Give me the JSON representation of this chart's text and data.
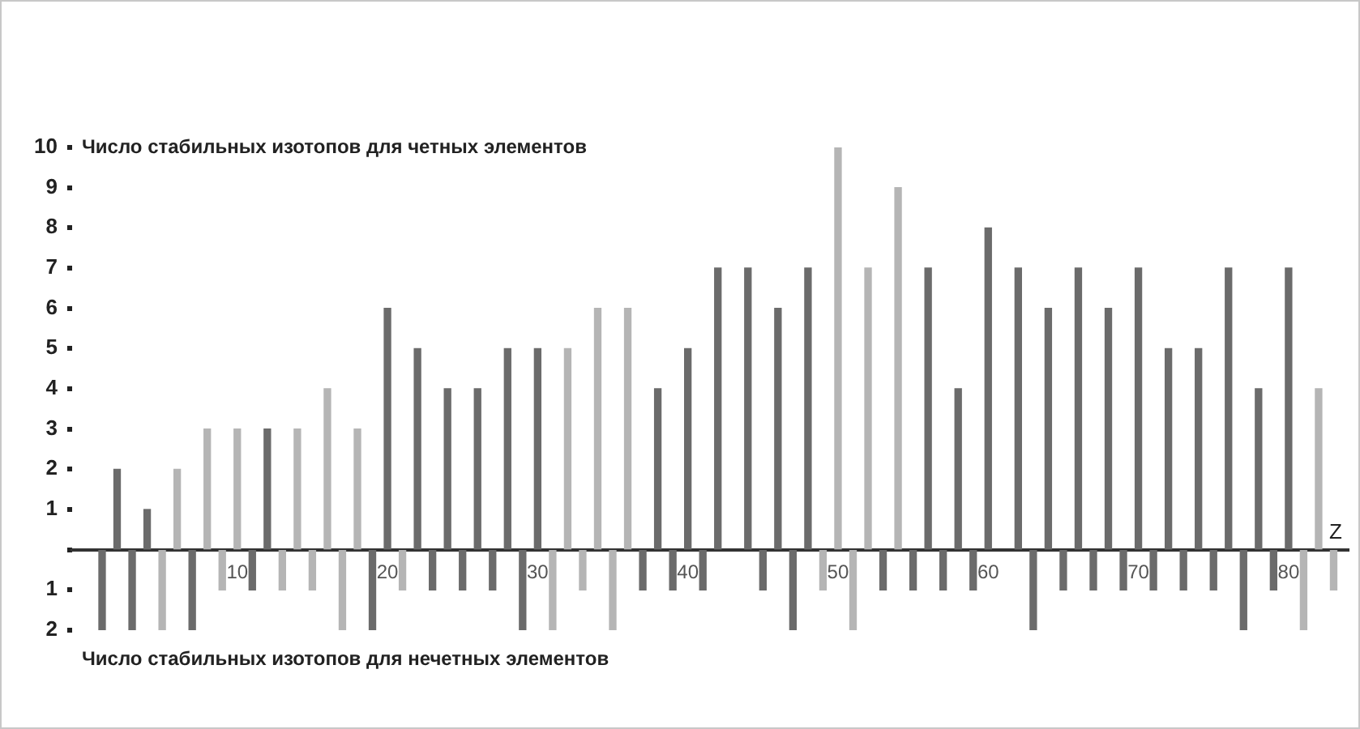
{
  "chart_data": {
    "type": "bar",
    "xlabel": "Z",
    "annotations": [
      "Число стабильных изотопов для четных элементов",
      "Число стабильных изотопов для нечетных элементов"
    ],
    "series": [
      {
        "x": [
          1,
          2,
          3,
          4,
          5,
          6,
          7,
          8,
          9,
          10,
          11,
          12,
          13,
          14,
          15,
          16,
          17,
          18,
          19,
          20,
          21,
          22,
          23,
          24,
          25,
          26,
          27,
          28,
          29,
          30,
          31,
          32,
          33,
          34,
          35,
          36,
          37,
          38,
          39,
          40,
          41,
          42,
          43,
          44,
          45,
          46,
          47,
          48,
          49,
          50,
          51,
          52,
          53,
          54,
          55,
          56,
          57,
          58,
          59,
          60,
          61,
          62,
          63,
          64,
          65,
          66,
          67,
          68,
          69,
          70,
          71,
          72,
          73,
          74,
          75,
          76,
          77,
          78,
          79,
          80,
          81,
          82,
          83
        ],
        "values": [
          -2,
          2,
          -2,
          1,
          -2,
          2,
          -2,
          3,
          -1,
          3,
          -1,
          3,
          -1,
          3,
          -1,
          4,
          -2,
          3,
          -2,
          6,
          -1,
          5,
          -1,
          4,
          -1,
          4,
          -1,
          5,
          -2,
          5,
          -2,
          5,
          -1,
          6,
          -2,
          6,
          -1,
          4,
          -1,
          5,
          -1,
          7,
          null,
          7,
          -1,
          6,
          -2,
          7,
          -1,
          10,
          -2,
          7,
          -1,
          9,
          -1,
          7,
          -1,
          4,
          -1,
          8,
          null,
          7,
          -2,
          6,
          -1,
          7,
          -1,
          6,
          -1,
          7,
          -1,
          5,
          -1,
          5,
          -1,
          7,
          -2,
          4,
          -1,
          7,
          -2,
          4,
          -1
        ],
        "colors": [
          "#6b6b6b",
          "#6b6b6b",
          "#6b6b6b",
          "#6b6b6b",
          "#b5b5b5",
          "#b5b5b5",
          "#6b6b6b",
          "#b5b5b5",
          "#b5b5b5",
          "#b5b5b5",
          "#6b6b6b",
          "#6b6b6b",
          "#b5b5b5",
          "#b5b5b5",
          "#b5b5b5",
          "#b5b5b5",
          "#b5b5b5",
          "#b5b5b5",
          "#6b6b6b",
          "#6b6b6b",
          "#b5b5b5",
          "#6b6b6b",
          "#6b6b6b",
          "#6b6b6b",
          "#6b6b6b",
          "#6b6b6b",
          "#6b6b6b",
          "#6b6b6b",
          "#6b6b6b",
          "#6b6b6b",
          "#b5b5b5",
          "#b5b5b5",
          "#b5b5b5",
          "#b5b5b5",
          "#b5b5b5",
          "#b5b5b5",
          "#6b6b6b",
          "#6b6b6b",
          "#6b6b6b",
          "#6b6b6b",
          "#6b6b6b",
          "#6b6b6b",
          "#6b6b6b",
          "#6b6b6b",
          "#6b6b6b",
          "#6b6b6b",
          "#6b6b6b",
          "#6b6b6b",
          "#b5b5b5",
          "#b5b5b5",
          "#b5b5b5",
          "#b5b5b5",
          "#6b6b6b",
          "#b5b5b5",
          "#6b6b6b",
          "#6b6b6b",
          "#6b6b6b",
          "#6b6b6b",
          "#6b6b6b",
          "#6b6b6b",
          "#6b6b6b",
          "#6b6b6b",
          "#6b6b6b",
          "#6b6b6b",
          "#6b6b6b",
          "#6b6b6b",
          "#6b6b6b",
          "#6b6b6b",
          "#6b6b6b",
          "#6b6b6b",
          "#6b6b6b",
          "#6b6b6b",
          "#6b6b6b",
          "#6b6b6b",
          "#6b6b6b",
          "#6b6b6b",
          "#6b6b6b",
          "#6b6b6b",
          "#6b6b6b",
          "#6b6b6b",
          "#b5b5b5",
          "#b5b5b5",
          "#b5b5b5"
        ]
      }
    ],
    "xlim": [
      -1,
      84
    ],
    "xticks": [
      10,
      20,
      30,
      40,
      50,
      60,
      70,
      80
    ],
    "ylim": [
      -2,
      10
    ],
    "yticks": [
      {
        "value": -2,
        "label": "2"
      },
      {
        "value": -1,
        "label": "1"
      },
      {
        "value": 0,
        "label": null
      },
      1,
      2,
      3,
      4,
      5,
      6,
      7,
      8,
      9,
      10
    ],
    "grid": false,
    "legend": false
  }
}
